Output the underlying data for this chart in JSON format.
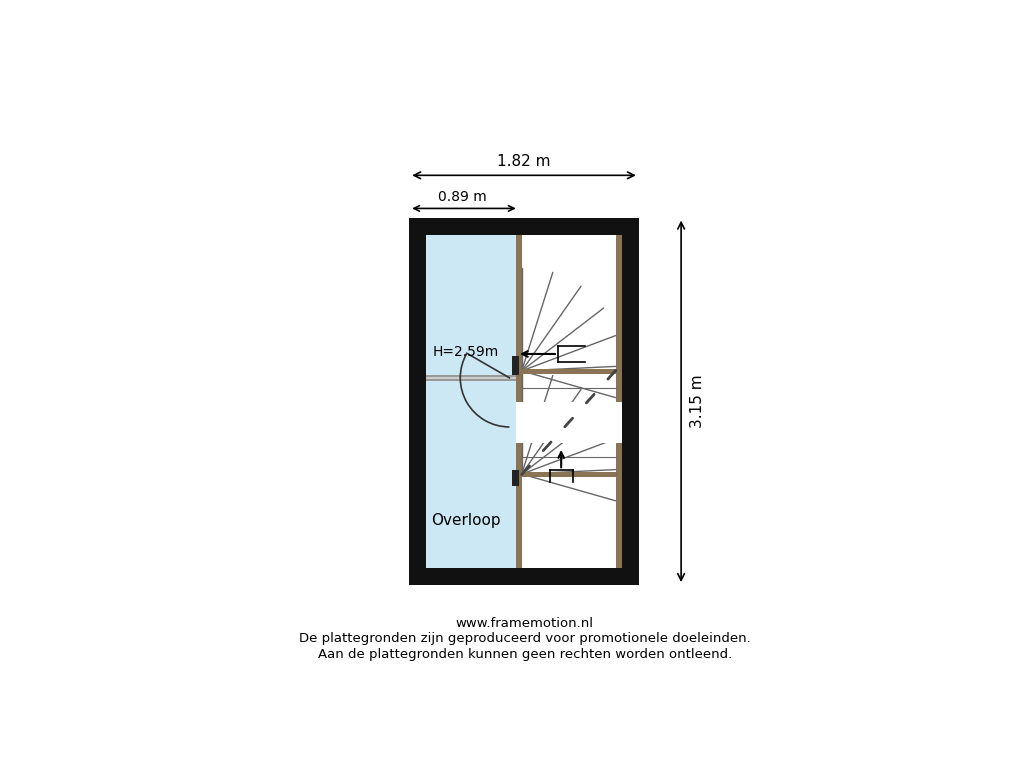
{
  "bg_color": "#ffffff",
  "wall_outer_color": "#111111",
  "brown_color": "#8B7355",
  "room_fill_color": "#cce8f4",
  "stair_fill_color": "#ffffff",
  "dark_color": "#222222",
  "stair_line_color": "#666666",
  "text_color": "#000000",
  "dim_text_1": "1.82 m",
  "dim_text_2": "0.89 m",
  "dim_text_3": "3.15 m",
  "room_label": "Overloop",
  "height_label": "H=2.59m",
  "footer_line1": "www.framemotion.nl",
  "footer_line2": "De plattegronden zijn geproduceerd voor promotionele doeleinden.",
  "footer_line3": "Aan de plattegronden kunnen geen rechten worden ontleend."
}
